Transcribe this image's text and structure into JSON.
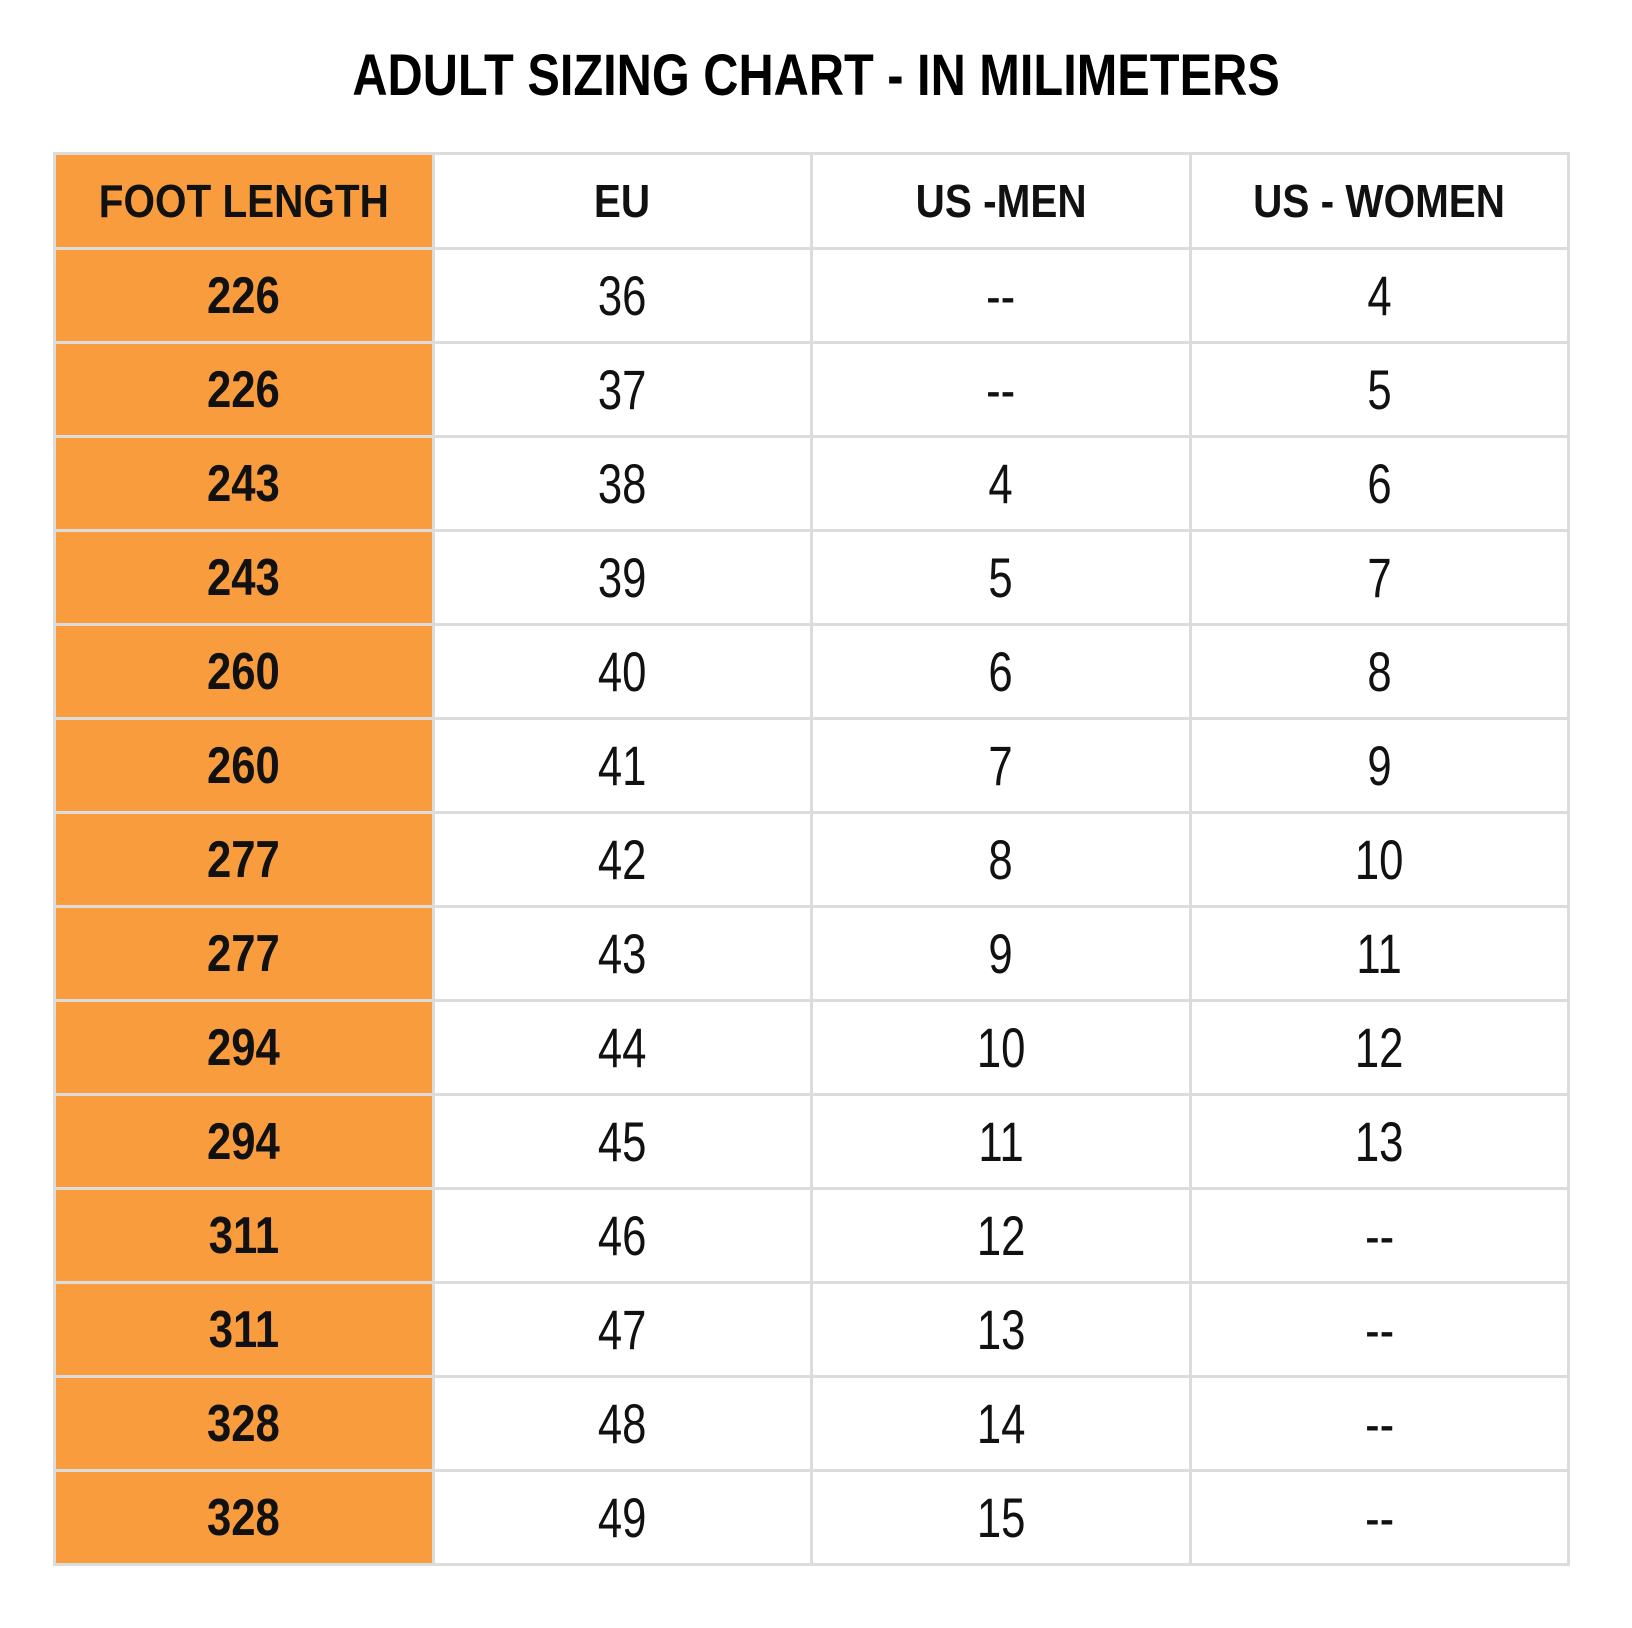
{
  "title": "ADULT SIZING CHART - IN MILIMETERS",
  "colors": {
    "accent_orange": "#f99c3d",
    "grid_line": "#dcdcdc",
    "text": "#111111",
    "background": "#ffffff"
  },
  "chart_data": {
    "type": "table",
    "title": "ADULT SIZING CHART - IN MILIMETERS",
    "columns": [
      "FOOT LENGTH",
      "EU",
      "US -MEN",
      "US - WOMEN"
    ],
    "rows": [
      [
        "226",
        "36",
        "--",
        "4"
      ],
      [
        "226",
        "37",
        "--",
        "5"
      ],
      [
        "243",
        "38",
        "4",
        "6"
      ],
      [
        "243",
        "39",
        "5",
        "7"
      ],
      [
        "260",
        "40",
        "6",
        "8"
      ],
      [
        "260",
        "41",
        "7",
        "9"
      ],
      [
        "277",
        "42",
        "8",
        "10"
      ],
      [
        "277",
        "43",
        "9",
        "11"
      ],
      [
        "294",
        "44",
        "10",
        "12"
      ],
      [
        "294",
        "45",
        "11",
        "13"
      ],
      [
        "311",
        "46",
        "12",
        "--"
      ],
      [
        "311",
        "47",
        "13",
        "--"
      ],
      [
        "328",
        "48",
        "14",
        "--"
      ],
      [
        "328",
        "49",
        "15",
        "--"
      ]
    ],
    "layout": {
      "first_column_highlight": "orange",
      "grid": true,
      "header_row": true
    }
  }
}
